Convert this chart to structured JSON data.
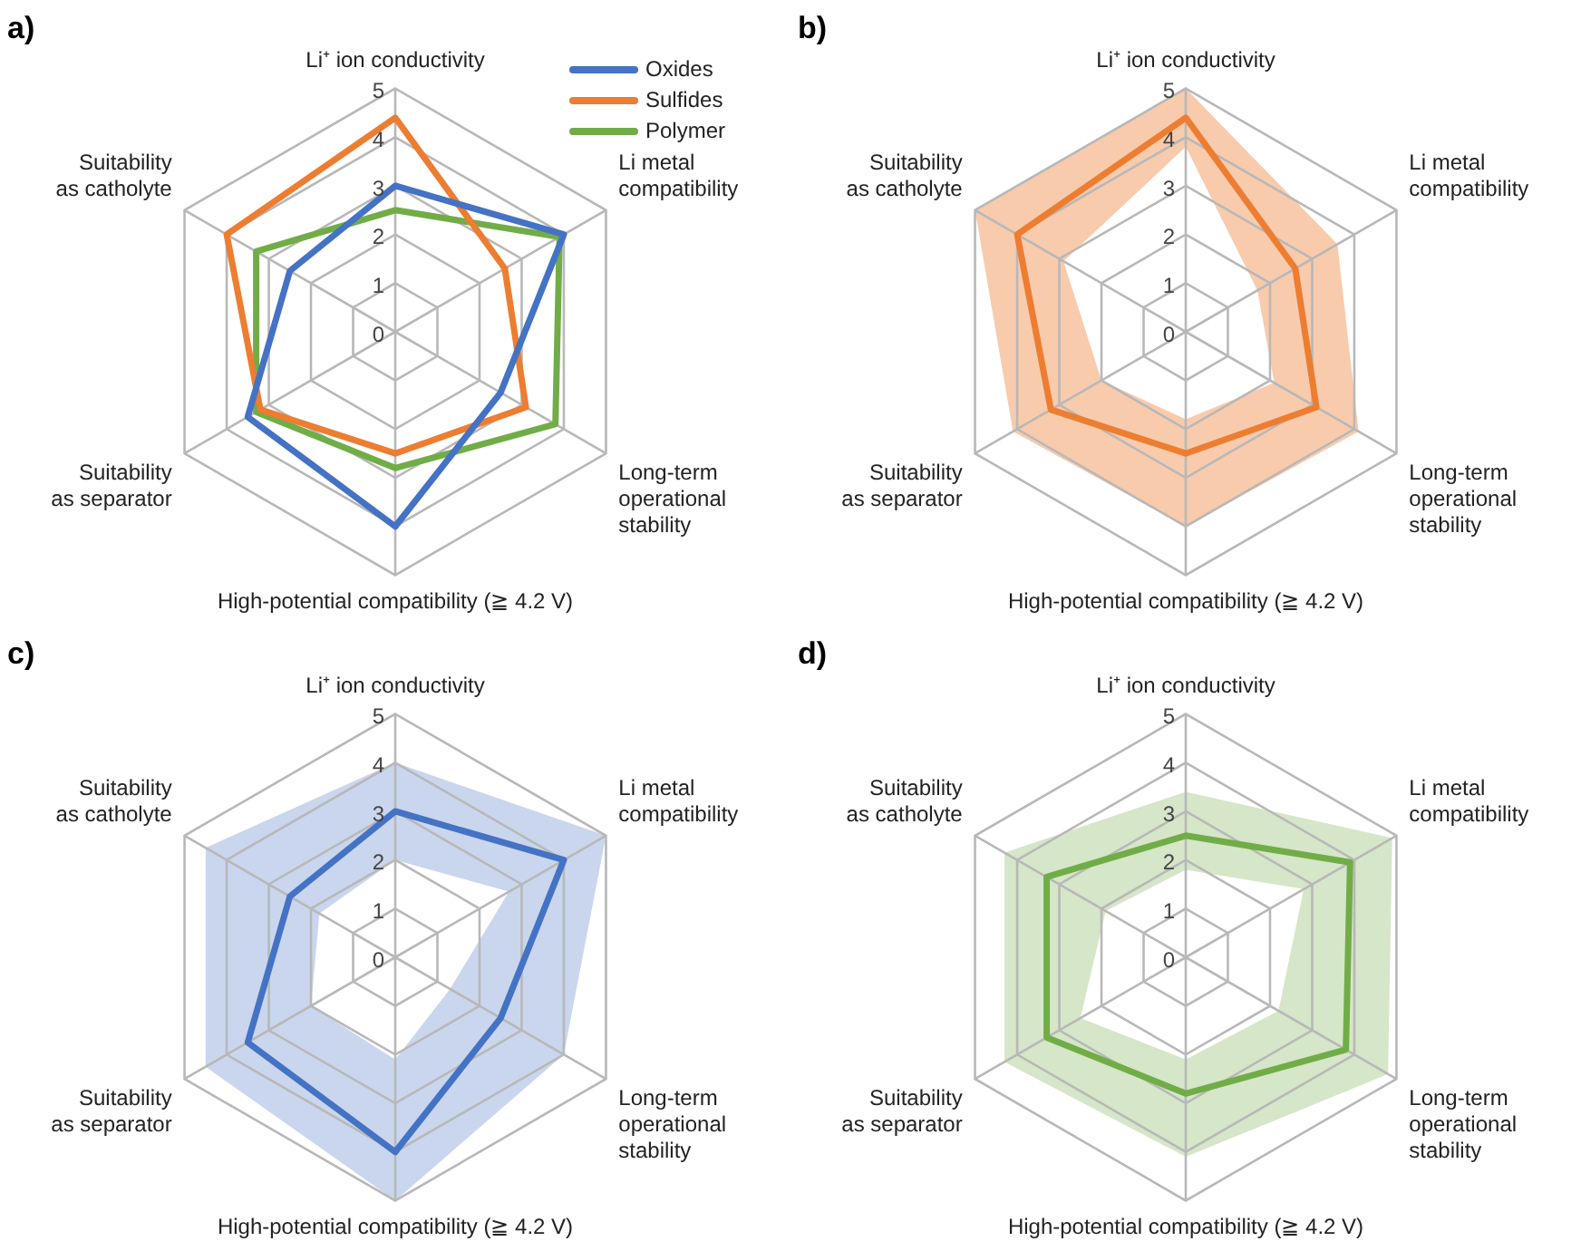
{
  "chart_data": [
    {
      "type": "radar",
      "title": "a)",
      "categories": [
        "Li⁺ ion conductivity",
        "Li metal compatibility",
        "Long-term operational stability",
        "High-potential compatibility (≧ 4.2 V)",
        "Suitability as separator",
        "Suitability as catholyte"
      ],
      "ylim": [
        0,
        5
      ],
      "yticks": [
        0,
        1,
        2,
        3,
        4,
        5
      ],
      "grid": true,
      "legend": "top right",
      "marker": "none",
      "series": [
        {
          "name": "Oxides",
          "color": "#4472c4",
          "values": [
            3,
            4,
            2.5,
            4,
            3.5,
            2.5
          ]
        },
        {
          "name": "Sulfides",
          "color": "#ed7d31",
          "values": [
            4.4,
            2.6,
            3.1,
            2.5,
            3.2,
            4
          ]
        },
        {
          "name": "Polymer",
          "color": "#70ad47",
          "values": [
            2.5,
            3.9,
            3.8,
            2.8,
            3.3,
            3.3
          ]
        }
      ]
    },
    {
      "type": "radar",
      "title": "b)",
      "categories": [
        "Li⁺ ion conductivity",
        "Li metal compatibility",
        "Long-term operational stability",
        "High-potential compatibility (≧ 4.2 V)",
        "Suitability as separator",
        "Suitability as catholyte"
      ],
      "ylim": [
        0,
        5
      ],
      "yticks": [
        0,
        1,
        2,
        3,
        4,
        5
      ],
      "grid": true,
      "marker": "none",
      "series": [
        {
          "type": "area",
          "color": "#f8cbad",
          "values": [
            5,
            3.6,
            4.1,
            4,
            4.1,
            5
          ]
        },
        {
          "type": "area",
          "color": "#f8cbad",
          "values": [
            3.8,
            1.7,
            2.1,
            1.8,
            2,
            2.9
          ]
        },
        {
          "color": "#ed7d31",
          "values": [
            4.4,
            2.6,
            3.1,
            2.5,
            3.2,
            4
          ]
        }
      ]
    },
    {
      "type": "radar",
      "title": "c)",
      "categories": [
        "Li⁺ ion conductivity",
        "Li metal compatibility",
        "Long-term operational stability",
        "High-potential compatibility (≧ 4.2 V)",
        "Suitability as separator",
        "Suitability as catholyte"
      ],
      "ylim": [
        0,
        5
      ],
      "yticks": [
        0,
        1,
        2,
        3,
        4,
        5
      ],
      "grid": true,
      "marker": "none",
      "series": [
        {
          "type": "area",
          "color": "#c9d6ee",
          "values": [
            4,
            5,
            4,
            5,
            4.5,
            4.5
          ]
        },
        {
          "type": "area",
          "color": "#c9d6ee",
          "values": [
            2,
            2.7,
            1.3,
            2.1,
            2,
            1.8
          ]
        },
        {
          "color": "#4472c4",
          "values": [
            3,
            4,
            2.5,
            4,
            3.5,
            2.5
          ]
        }
      ]
    },
    {
      "type": "radar",
      "title": "d)",
      "categories": [
        "Li⁺ ion conductivity",
        "Li metal compatibility",
        "Long-term operational stability",
        "High-potential compatibility (≧ 4.2 V)",
        "Suitability as separator",
        "Suitability as catholyte"
      ],
      "ylim": [
        0,
        5
      ],
      "yticks": [
        0,
        1,
        2,
        3,
        4,
        5
      ],
      "grid": true,
      "marker": "none",
      "series": [
        {
          "type": "area",
          "color": "#d6e6c8",
          "values": [
            3.4,
            4.9,
            4.8,
            4.1,
            4.3,
            4.3
          ]
        },
        {
          "type": "area",
          "color": "#d6e6c8",
          "values": [
            1.8,
            2.8,
            2.2,
            2.1,
            2.5,
            1.9
          ]
        },
        {
          "color": "#70ad47",
          "values": [
            2.5,
            3.9,
            3.8,
            2.8,
            3.3,
            3.3
          ]
        }
      ]
    }
  ]
}
